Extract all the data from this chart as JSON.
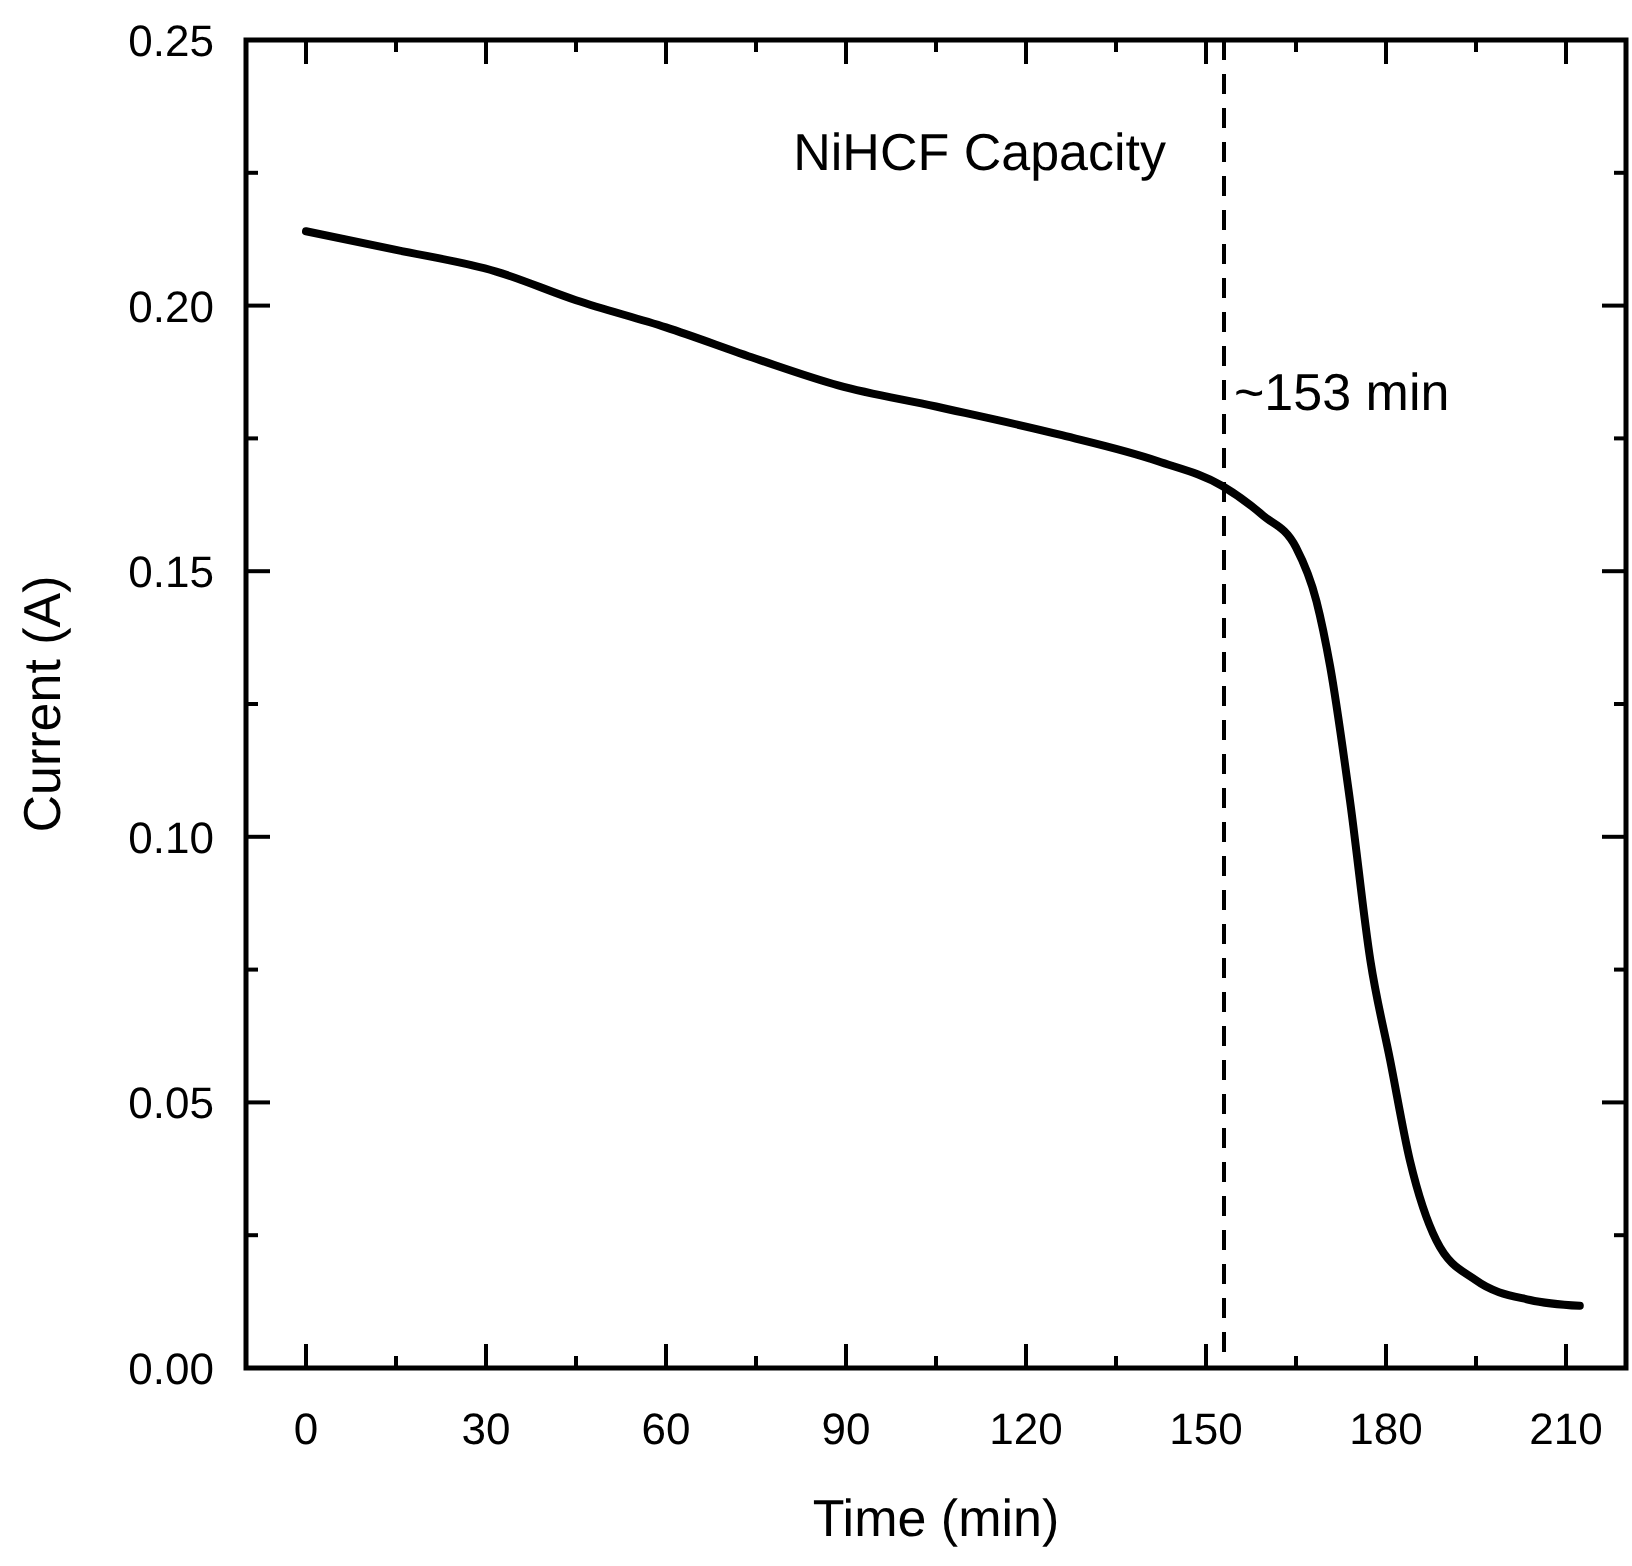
{
  "chart_data": {
    "type": "line",
    "xlabel": "Time (min)",
    "ylabel": "Current (A)",
    "annotations": [
      {
        "text": "NiHCF Capacity"
      }
    ],
    "x": [
      0,
      15,
      31.7,
      45,
      60,
      75,
      88.7,
      105,
      126,
      142,
      152.8,
      159.5,
      165,
      168.4,
      170.7,
      174,
      177.4,
      180.7,
      184,
      188.4,
      195,
      204,
      212.3
    ],
    "series": [
      {
        "color": "#000000",
        "values": [
          0.214,
          0.2105,
          0.2064,
          0.201,
          0.1959,
          0.19,
          0.185,
          0.181,
          0.1756,
          0.1707,
          0.166,
          0.1605,
          0.1545,
          0.1444,
          0.132,
          0.1068,
          0.0767,
          0.0579,
          0.039,
          0.024,
          0.0165,
          0.0128,
          0.0117
        ]
      }
    ],
    "xlim": [
      -10,
      220
    ],
    "ylim": [
      0,
      0.25
    ],
    "xticks": [
      0,
      {
        "value": 15,
        "label": null
      },
      30,
      {
        "value": 45,
        "label": null
      },
      60,
      {
        "value": 75,
        "label": null
      },
      90,
      {
        "value": 105,
        "label": null
      },
      120,
      {
        "value": 135,
        "label": null
      },
      150,
      {
        "value": 165,
        "label": null
      },
      180,
      {
        "value": 195,
        "label": null
      },
      210
    ],
    "yticks": [
      {
        "value": 0,
        "label": "0.00"
      },
      {
        "value": 0.025,
        "label": null
      },
      {
        "value": 0.05,
        "label": "0.05"
      },
      {
        "value": 0.075,
        "label": null
      },
      {
        "value": 0.1,
        "label": "0.10"
      },
      {
        "value": 0.125,
        "label": null
      },
      {
        "value": 0.15,
        "label": "0.15"
      },
      {
        "value": 0.175,
        "label": null
      },
      {
        "value": 0.2,
        "label": "0.20"
      },
      {
        "value": 0.225,
        "label": null
      },
      {
        "value": 0.25,
        "label": "0.25"
      }
    ],
    "ref_lines": [
      {
        "axis": "x",
        "value": 153,
        "label": "~153 min",
        "line_style": "dashed",
        "color": "#000000"
      }
    ],
    "marker": "none",
    "line_style": "solid"
  }
}
